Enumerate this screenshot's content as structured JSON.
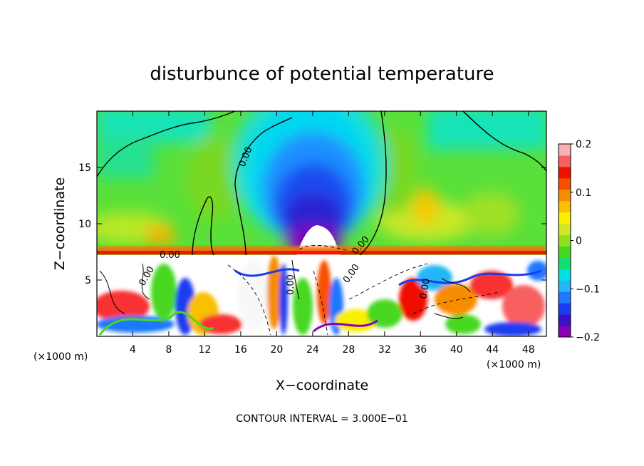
{
  "chart_data": {
    "type": "heatmap",
    "title": "disturbunce of potential temperature",
    "xlabel": "X−coordinate",
    "ylabel": "Z−coordinate",
    "x_unit_label": "(×1000 m)",
    "xlim": [
      0,
      50
    ],
    "ylim": [
      0,
      20
    ],
    "x_ticks": [
      4,
      8,
      12,
      16,
      20,
      24,
      28,
      32,
      36,
      40,
      44,
      48
    ],
    "y_ticks": [
      5,
      10,
      15
    ],
    "colorbar": {
      "range": [
        -0.2,
        0.2
      ],
      "tick_labels": [
        "0.2",
        "0.1",
        "0",
        "−0.1",
        "−0.2"
      ],
      "tick_values": [
        0.2,
        0.1,
        0,
        -0.1,
        -0.2
      ],
      "colors": [
        "#8a00b8",
        "#3a10c8",
        "#1a3cf0",
        "#1f78ff",
        "#22b8f8",
        "#00e0e0",
        "#10e070",
        "#48d820",
        "#90e020",
        "#d0e828",
        "#f8f000",
        "#f8c000",
        "#f88c00",
        "#f85000",
        "#f01000",
        "#f86060",
        "#f8b0b0"
      ],
      "placement": "right"
    },
    "contour_labels": [
      "0.00",
      "0.00",
      "0.00",
      "0.00",
      "0.00",
      "0.00",
      "0.00"
    ],
    "annotation": "CONTOUR INTERVAL = 3.000E−01",
    "grid": false
  }
}
